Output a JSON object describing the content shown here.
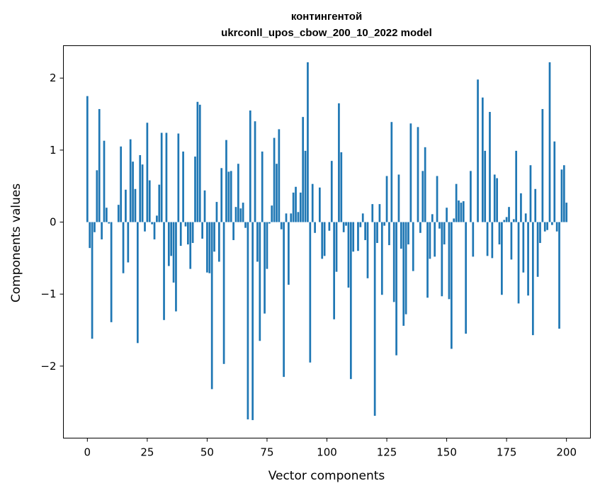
{
  "chart_data": {
    "type": "bar",
    "title": "контингентой",
    "subtitle": "ukrconll_upos_cbow_200_10_2022 model",
    "xlabel": "Vector components",
    "ylabel": "Components values",
    "xlim": [
      -10,
      210
    ],
    "ylim": [
      -3.0,
      2.45
    ],
    "xticks": [
      0,
      25,
      50,
      75,
      100,
      125,
      150,
      175,
      200
    ],
    "xtick_labels": [
      "0",
      "25",
      "50",
      "75",
      "100",
      "125",
      "150",
      "175",
      "200"
    ],
    "yticks": [
      -2,
      -1,
      0,
      1,
      2
    ],
    "ytick_labels": [
      "−2",
      "−1",
      "0",
      "1",
      "2"
    ],
    "bar_color": "#1f77b4",
    "grid": false,
    "values": [
      1.75,
      -0.36,
      -1.62,
      -0.14,
      0.72,
      1.57,
      -0.24,
      1.13,
      0.2,
      -0.02,
      -1.39,
      0.0,
      0.0,
      0.24,
      1.05,
      -0.71,
      0.45,
      -0.56,
      1.15,
      0.84,
      0.46,
      -1.68,
      0.93,
      0.8,
      -0.13,
      1.38,
      0.58,
      -0.03,
      -0.24,
      0.09,
      0.52,
      1.24,
      -1.36,
      1.24,
      -0.61,
      -0.47,
      -0.84,
      -1.24,
      1.23,
      -0.33,
      0.98,
      -0.06,
      -0.31,
      -0.65,
      -0.29,
      0.91,
      1.67,
      1.63,
      -0.23,
      0.44,
      -0.7,
      -0.71,
      -2.32,
      -0.41,
      0.28,
      -0.55,
      0.75,
      -1.97,
      1.14,
      0.7,
      0.71,
      -0.25,
      0.21,
      0.81,
      0.19,
      0.27,
      -0.08,
      -2.74,
      1.55,
      -2.75,
      1.4,
      -0.55,
      -1.65,
      0.98,
      -1.27,
      -0.65,
      -0.02,
      0.23,
      1.17,
      0.81,
      1.29,
      -0.1,
      -2.15,
      0.12,
      -0.87,
      0.12,
      0.41,
      0.49,
      0.14,
      0.41,
      1.46,
      0.99,
      2.22,
      -1.95,
      0.53,
      -0.15,
      0.0,
      0.48,
      -0.51,
      -0.47,
      0.0,
      -0.12,
      0.85,
      -1.35,
      -0.69,
      1.65,
      0.97,
      -0.14,
      -0.05,
      -0.91,
      -2.18,
      -0.41,
      0.0,
      -0.4,
      -0.07,
      0.12,
      -0.25,
      -0.78,
      0.0,
      0.25,
      -2.69,
      -0.29,
      0.25,
      -1.01,
      -0.05,
      0.64,
      -0.32,
      1.39,
      -1.11,
      -1.85,
      0.66,
      -0.37,
      -1.44,
      -1.28,
      -0.31,
      1.37,
      -0.68,
      0.0,
      1.32,
      -0.15,
      0.71,
      1.04,
      -1.05,
      -0.51,
      0.11,
      -0.48,
      0.64,
      -0.09,
      -1.03,
      -0.31,
      0.2,
      -1.07,
      -1.76,
      0.05,
      0.53,
      0.3,
      0.27,
      0.29,
      -1.55,
      0.0,
      0.71,
      -0.48,
      0.0,
      1.98,
      0.0,
      1.73,
      0.99,
      -0.47,
      1.53,
      -0.5,
      0.66,
      0.61,
      -0.31,
      -1.01,
      0.03,
      0.07,
      0.21,
      -0.52,
      0.04,
      0.99,
      -1.13,
      0.4,
      -0.7,
      0.12,
      -1.02,
      0.79,
      -1.57,
      0.46,
      -0.76,
      -0.29,
      1.57,
      -0.13,
      -0.11,
      2.22,
      -0.04,
      1.12,
      -0.13,
      -1.48,
      0.73,
      0.79,
      0.27
    ]
  }
}
